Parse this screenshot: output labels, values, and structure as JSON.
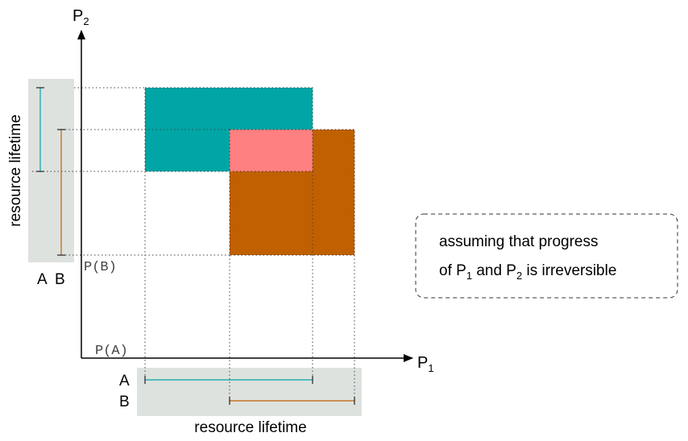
{
  "axes": {
    "x": {
      "label_base": "P",
      "label_sub": "1"
    },
    "y": {
      "label_base": "P",
      "label_sub": "2"
    }
  },
  "markers": {
    "pa": "P(A)",
    "pb": "P(B)"
  },
  "vertical_legend": {
    "title": "resource lifetime",
    "label_a": "A",
    "label_b": "B"
  },
  "horizontal_legend": {
    "title": "resource lifetime",
    "label_a": "A",
    "label_b": "B"
  },
  "note": {
    "line1": "assuming that progress",
    "line2_prefix": "of P",
    "line2_sub1": "1",
    "line2_mid": " and P",
    "line2_sub2": "2",
    "line2_suffix": " is irreversible"
  },
  "colors": {
    "region_a": "#00a5a5",
    "region_b": "#c06000",
    "overlap": "#ff8080",
    "legend_bg": "#dee2de",
    "line_a": "#00a5a5",
    "line_b": "#c06000"
  }
}
